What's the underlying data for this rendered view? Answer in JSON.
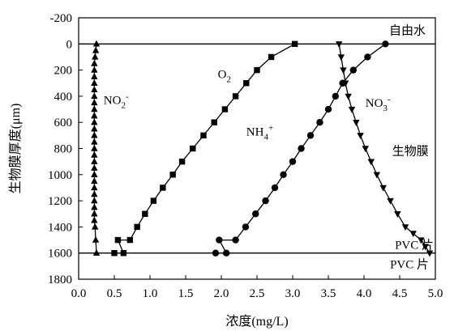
{
  "chart_data": {
    "type": "line",
    "title": "",
    "xlabel": "浓度(mg/L)",
    "ylabel": "生物膜厚度(μm)",
    "xlim": [
      0,
      5.0
    ],
    "ylim": [
      -200,
      1800
    ],
    "y_inverted": true,
    "xticks": [
      "0.0",
      "0.5",
      "1.0",
      "1.5",
      "2.0",
      "2.5",
      "3.0",
      "3.5",
      "4.0",
      "4.5",
      "5.0"
    ],
    "yticks": [
      "-200",
      "0",
      "200",
      "400",
      "600",
      "800",
      "1000",
      "1200",
      "1400",
      "1600",
      "1800"
    ],
    "grid": false,
    "legend": "none",
    "reference_lines": [
      {
        "y": 0,
        "label": "自由水"
      },
      {
        "y": 1600,
        "label_above": "PVC 片",
        "label_below": "PVC 片"
      }
    ],
    "region_labels": [
      {
        "text": "生物膜",
        "x": 4.65,
        "y": 850
      }
    ],
    "series": [
      {
        "name": "NO2-",
        "label_main": "NO",
        "label_sub": "2",
        "label_sup": "-",
        "label_at": {
          "x": 0.35,
          "y": 460
        },
        "marker": "triangle-up",
        "x": [
          0.25,
          0.24,
          0.23,
          0.22,
          0.22,
          0.22,
          0.22,
          0.22,
          0.22,
          0.22,
          0.22,
          0.22,
          0.22,
          0.22,
          0.22,
          0.22,
          0.22,
          0.22,
          0.22,
          0.22,
          0.22,
          0.22,
          0.22,
          0.22,
          0.22,
          0.22,
          0.22,
          0.22,
          0.23,
          0.24,
          0.25
        ],
        "y": [
          0,
          50,
          100,
          150,
          200,
          250,
          300,
          350,
          400,
          450,
          500,
          550,
          600,
          650,
          700,
          750,
          800,
          850,
          900,
          950,
          1000,
          1050,
          1100,
          1150,
          1200,
          1250,
          1300,
          1350,
          1400,
          1500,
          1600
        ]
      },
      {
        "name": "O2",
        "label_main": "O",
        "label_sub": "2",
        "label_sup": "",
        "label_at": {
          "x": 1.95,
          "y": 260
        },
        "marker": "square",
        "x": [
          3.03,
          2.7,
          2.5,
          2.35,
          2.2,
          2.05,
          1.9,
          1.75,
          1.6,
          1.45,
          1.32,
          1.18,
          1.05,
          0.93,
          0.82,
          0.72,
          0.63,
          0.55,
          0.5
        ],
        "y": [
          0,
          100,
          200,
          300,
          400,
          500,
          600,
          700,
          800,
          900,
          1000,
          1100,
          1200,
          1300,
          1400,
          1500,
          1600,
          1500,
          1600
        ]
      },
      {
        "name": "NH4+",
        "label_main": "NH",
        "label_sub": "4",
        "label_sup": "+",
        "label_at": {
          "x": 2.35,
          "y": 700
        },
        "marker": "circle",
        "x": [
          4.3,
          4.05,
          3.85,
          3.7,
          3.6,
          3.5,
          3.38,
          3.25,
          3.12,
          3.0,
          2.87,
          2.75,
          2.62,
          2.48,
          2.34,
          2.2,
          2.07,
          1.97,
          1.92
        ],
        "y": [
          0,
          100,
          200,
          300,
          400,
          500,
          600,
          700,
          800,
          900,
          1000,
          1100,
          1200,
          1300,
          1400,
          1500,
          1600,
          1500,
          1600
        ]
      },
      {
        "name": "NO3-",
        "label_main": "NO",
        "label_sub": "3",
        "label_sup": "-",
        "label_at": {
          "x": 4.02,
          "y": 480
        },
        "marker": "triangle-down",
        "x": [
          3.65,
          3.68,
          3.71,
          3.74,
          3.78,
          3.83,
          3.89,
          3.95,
          4.02,
          4.1,
          4.18,
          4.27,
          4.37,
          4.47,
          4.58,
          4.69,
          4.8,
          4.86,
          4.92
        ],
        "y": [
          0,
          100,
          200,
          300,
          400,
          500,
          600,
          700,
          800,
          900,
          1000,
          1100,
          1200,
          1300,
          1400,
          1450,
          1500,
          1550,
          1600
        ]
      }
    ]
  }
}
